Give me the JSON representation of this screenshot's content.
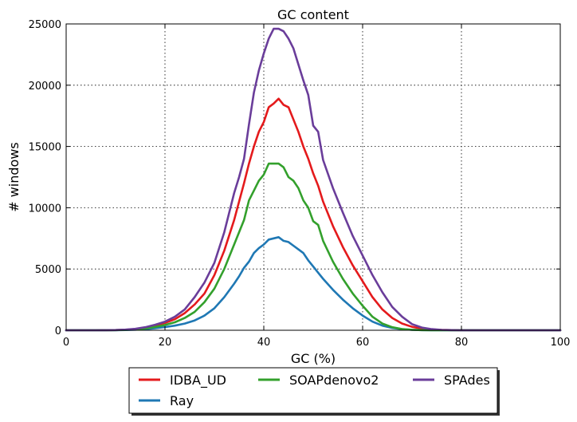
{
  "chart_data": {
    "type": "line",
    "title": "GC content",
    "xlabel": "GC (%)",
    "ylabel": "# windows",
    "xlim": [
      0,
      100
    ],
    "ylim": [
      0,
      25000
    ],
    "xticks": [
      0,
      20,
      40,
      60,
      80,
      100
    ],
    "yticks": [
      0,
      5000,
      10000,
      15000,
      20000,
      25000
    ],
    "grid": true,
    "legend_position": "bottom-center",
    "x": [
      0,
      2,
      4,
      6,
      8,
      10,
      12,
      14,
      16,
      18,
      20,
      22,
      24,
      26,
      28,
      30,
      32,
      34,
      35,
      36,
      37,
      38,
      39,
      40,
      41,
      42,
      43,
      44,
      45,
      46,
      47,
      48,
      49,
      50,
      51,
      52,
      54,
      56,
      58,
      60,
      62,
      64,
      66,
      68,
      70,
      72,
      74,
      76,
      78,
      80,
      85,
      90,
      95,
      100
    ],
    "series": [
      {
        "name": "IDBA_UD",
        "color": "#e41a1c",
        "values": [
          0,
          0,
          0,
          0,
          5,
          15,
          40,
          100,
          200,
          380,
          600,
          900,
          1400,
          2100,
          3000,
          4500,
          6500,
          9000,
          10500,
          12000,
          13600,
          15000,
          16200,
          17000,
          18200,
          18500,
          18900,
          18400,
          18200,
          17200,
          16200,
          15000,
          14000,
          12800,
          11800,
          10500,
          8500,
          6800,
          5300,
          4000,
          2700,
          1700,
          1000,
          550,
          280,
          130,
          60,
          25,
          10,
          5,
          0,
          0,
          0,
          0
        ]
      },
      {
        "name": "Ray",
        "color": "#1f78b4",
        "values": [
          0,
          0,
          0,
          0,
          2,
          6,
          18,
          45,
          90,
          170,
          260,
          380,
          550,
          800,
          1200,
          1800,
          2700,
          3800,
          4400,
          5100,
          5600,
          6300,
          6700,
          7000,
          7400,
          7500,
          7600,
          7300,
          7200,
          6900,
          6600,
          6300,
          5700,
          5200,
          4700,
          4200,
          3300,
          2500,
          1800,
          1200,
          700,
          380,
          190,
          90,
          40,
          15,
          5,
          2,
          0,
          0,
          0,
          0,
          0,
          0
        ]
      },
      {
        "name": "SOAPdenovo2",
        "color": "#33a02c",
        "values": [
          0,
          0,
          0,
          0,
          4,
          10,
          30,
          70,
          140,
          270,
          430,
          650,
          1000,
          1500,
          2300,
          3400,
          5000,
          7000,
          8000,
          9000,
          10600,
          11400,
          12200,
          12700,
          13600,
          13600,
          13600,
          13300,
          12500,
          12200,
          11600,
          10600,
          10000,
          8900,
          8600,
          7300,
          5600,
          4200,
          3000,
          2000,
          1100,
          550,
          250,
          100,
          40,
          15,
          5,
          0,
          0,
          0,
          0,
          0,
          0,
          0
        ]
      },
      {
        "name": "SPAdes",
        "color": "#6a3d9a",
        "values": [
          0,
          0,
          0,
          0,
          8,
          20,
          50,
          120,
          250,
          450,
          700,
          1100,
          1700,
          2700,
          3900,
          5500,
          8000,
          11200,
          12500,
          14000,
          16800,
          19400,
          21200,
          22600,
          23800,
          24600,
          24600,
          24400,
          23800,
          23000,
          21700,
          20400,
          19200,
          16700,
          16200,
          13900,
          11600,
          9600,
          7700,
          6100,
          4500,
          3100,
          1900,
          1100,
          500,
          220,
          90,
          35,
          10,
          0,
          0,
          0,
          0,
          0
        ]
      }
    ]
  }
}
